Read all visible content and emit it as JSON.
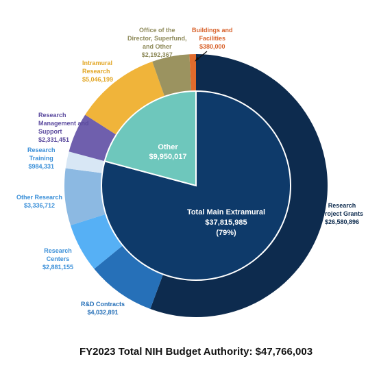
{
  "chart_data": {
    "type": "pie",
    "title": "FY2023 Total NIH Budget Authority: $47,766,003",
    "outer_ring": [
      {
        "name": "Research Project Grants",
        "value": 26580896,
        "value_label": "$26,580,896",
        "color": "#0d2b4e",
        "label_color": "#0d2b4e"
      },
      {
        "name": "R&D Contracts",
        "value": 4032891,
        "value_label": "$4,032,891",
        "color": "#2670b8",
        "label_color": "#2670b8"
      },
      {
        "name": "Research Centers",
        "value": 2881155,
        "value_label": "$2,881,155",
        "color": "#56b0f5",
        "label_color": "#3a8fd8"
      },
      {
        "name": "Other Research",
        "value": 3336712,
        "value_label": "$3,336,712",
        "color": "#8cb9e2",
        "label_color": "#3a8fd8"
      },
      {
        "name": "Research Training",
        "value": 984331,
        "value_label": "$984,331",
        "color": "#d8e7f5",
        "label_color": "#3a8fd8"
      },
      {
        "name": "Research Management and Support",
        "value": 2331451,
        "value_label": "$2,331,451",
        "color": "#6f5fad",
        "label_color": "#5b4a9e"
      },
      {
        "name": "Intramural Research",
        "value": 5046199,
        "value_label": "$5,046,199",
        "color": "#f0b43a",
        "label_color": "#e2a624"
      },
      {
        "name": "Office of the Director, Superfund, and Other",
        "value": 2192367,
        "value_label": "$2,192,367",
        "color": "#9b9360",
        "label_color": "#8e8a5a"
      },
      {
        "name": "Buildings and Facilities",
        "value": 380000,
        "value_label": "$380,000",
        "color": "#e06b2c",
        "label_color": "#d8612a"
      }
    ],
    "inner_ring": [
      {
        "name": "Total Main Extramural",
        "value": 37815985,
        "value_label": "$37,815,985",
        "percent_label": "(79%)",
        "color": "#0e3a6a"
      },
      {
        "name": "Other",
        "value": 9950017,
        "value_label": "$9,950,017",
        "color": "#6ec7bc"
      }
    ]
  },
  "labels": {
    "rpg": {
      "l1": "Research",
      "l2": "Project Grants",
      "v": "$26,580,896"
    },
    "rd": {
      "l1": "R&D Contracts",
      "v": "$4,032,891"
    },
    "rc": {
      "l1": "Research",
      "l2": "Centers",
      "v": "$2,881,155"
    },
    "or": {
      "l1": "Other Research",
      "v": "$3,336,712"
    },
    "rt": {
      "l1": "Research",
      "l2": "Training",
      "v": "$984,331"
    },
    "rms": {
      "l1": "Research",
      "l2": "Management and",
      "l3": "Support",
      "v": "$2,331,451"
    },
    "ir": {
      "l1": "Intramural",
      "l2": "Research",
      "v": "$5,046,199"
    },
    "od": {
      "l1": "Office of the",
      "l2": "Director, Superfund,",
      "l3": "and Other",
      "v": "$2,192,367"
    },
    "bf": {
      "l1": "Buildings and",
      "l2": "Facilities",
      "v": "$380,000"
    },
    "other": {
      "l1": "Other",
      "v": "$9,950,017"
    },
    "tme": {
      "l1": "Total Main Extramural",
      "v": "$37,815,985",
      "p": "(79%)"
    }
  }
}
